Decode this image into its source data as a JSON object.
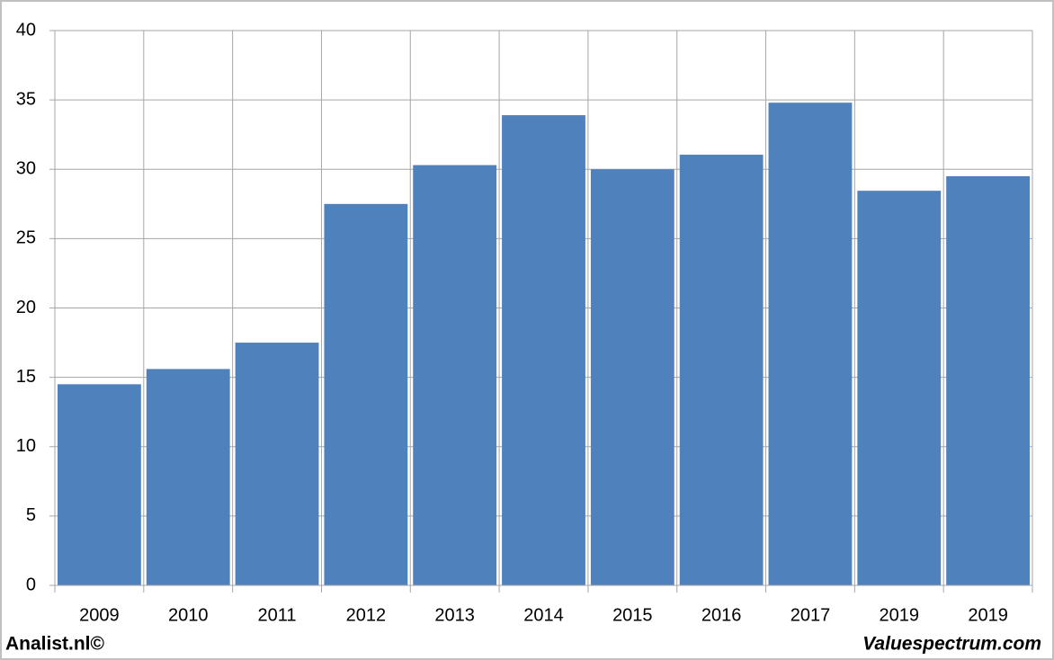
{
  "chart_data": {
    "type": "bar",
    "categories": [
      "2009",
      "2010",
      "2011",
      "2012",
      "2013",
      "2014",
      "2015",
      "2016",
      "2017",
      "2019",
      "2019"
    ],
    "values": [
      14.5,
      15.6,
      17.5,
      27.5,
      30.3,
      33.9,
      30.0,
      31.05,
      34.8,
      28.45,
      29.5
    ],
    "color": "#4f81bd",
    "ylim": [
      0,
      40
    ],
    "yticks": [
      0,
      5,
      10,
      15,
      20,
      25,
      30,
      35,
      40
    ],
    "grid": true,
    "source_left": "Analist.nl©",
    "source_right": "Valuespectrum.com"
  }
}
